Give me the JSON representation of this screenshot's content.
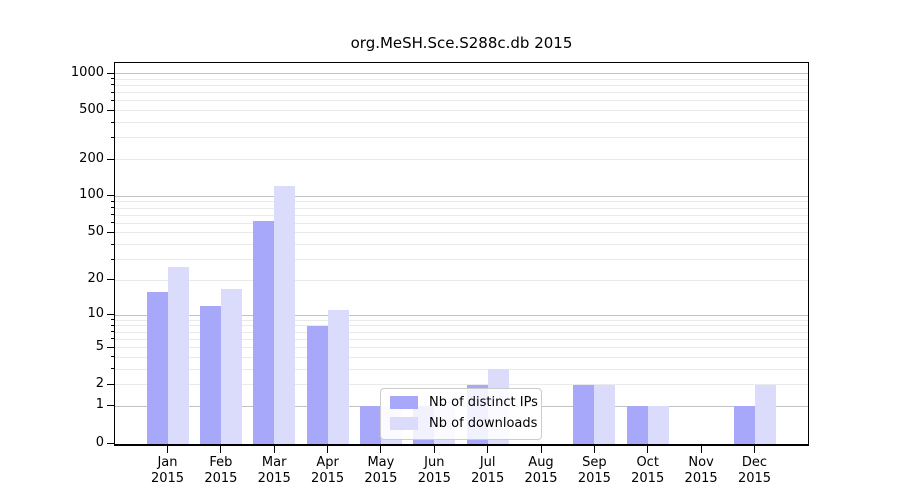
{
  "title": "org.MeSH.Sce.S288c.db 2015",
  "chart_data": {
    "type": "bar",
    "title": "org.MeSH.Sce.S288c.db 2015",
    "year": "2015",
    "months": [
      "Jan",
      "Feb",
      "Mar",
      "Apr",
      "May",
      "Jun",
      "Jul",
      "Aug",
      "Sep",
      "Oct",
      "Nov",
      "Dec"
    ],
    "categories": [
      "Jan 2015",
      "Feb 2015",
      "Mar 2015",
      "Apr 2015",
      "May 2015",
      "Jun 2015",
      "Jul 2015",
      "Aug 2015",
      "Sep 2015",
      "Oct 2015",
      "Nov 2015",
      "Dec 2015"
    ],
    "series": [
      {
        "name": "Nb of distinct IPs",
        "color": "#a8a8fa",
        "values": [
          16,
          12,
          63,
          8,
          1,
          1,
          2,
          0,
          2,
          1,
          0,
          1
        ]
      },
      {
        "name": "Nb of downloads",
        "color": "#dbdbfb",
        "values": [
          26,
          17,
          122,
          11,
          1,
          1,
          3,
          0,
          2,
          1,
          0,
          2
        ]
      }
    ],
    "yscale": "log1p",
    "yticks": [
      0,
      1,
      2,
      5,
      10,
      20,
      50,
      100,
      200,
      500,
      1000
    ],
    "ytick_labels": [
      "0",
      "1",
      "2",
      "5",
      "10",
      "20",
      "50",
      "100",
      "200",
      "500",
      "1000"
    ],
    "ylim": [
      0,
      1220
    ],
    "grid": "horizontal, minor log gridlines, no vertical lines",
    "legend": {
      "position": "inside-lower-center",
      "items": [
        "Nb of distinct IPs",
        "Nb of downloads"
      ]
    },
    "colors": {
      "major_grid": "#c3c3c3",
      "minor_grid": "#eaeaea",
      "spine": "#000000",
      "text": "#000000",
      "background": "#ffffff"
    }
  }
}
